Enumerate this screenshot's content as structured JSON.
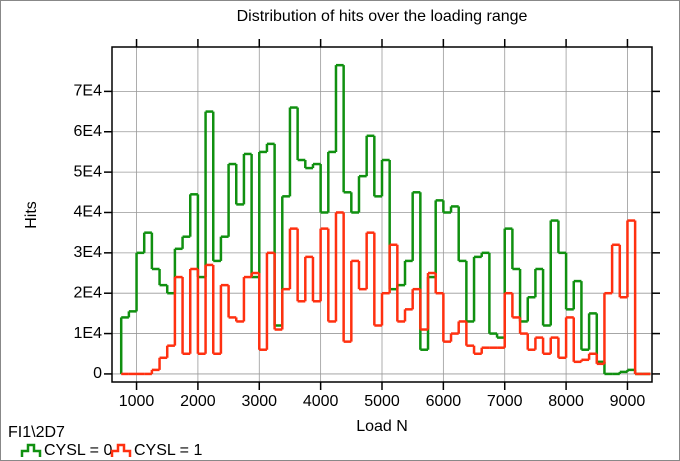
{
  "chart_data": {
    "type": "histogram",
    "title": "Distribution of hits over the loading range",
    "x_label": "Load N",
    "y_label": "Hits",
    "note": "FI1\\2D7",
    "bins": [
      750,
      875,
      1000,
      1125,
      1250,
      1375,
      1500,
      1625,
      1750,
      1875,
      2000,
      2125,
      2250,
      2375,
      2500,
      2625,
      2750,
      2875,
      3000,
      3125,
      3250,
      3375,
      3500,
      3625,
      3750,
      3875,
      4000,
      4125,
      4250,
      4375,
      4500,
      4625,
      4750,
      4875,
      5000,
      5125,
      5250,
      5375,
      5500,
      5625,
      5750,
      5875,
      6000,
      6125,
      6250,
      6375,
      6500,
      6625,
      6750,
      6875,
      7000,
      7125,
      7250,
      7375,
      7500,
      7625,
      7750,
      7875,
      8000,
      8125,
      8250,
      8375,
      8500,
      8625,
      8750,
      8875,
      9000,
      9125,
      9250,
      9375
    ],
    "series": [
      {
        "name": "CYSL = 0",
        "color": "#109010",
        "values": [
          14000,
          15500,
          30000,
          35000,
          26000,
          22000,
          20000,
          31000,
          34000,
          44500,
          24000,
          65000,
          28000,
          34000,
          52000,
          42000,
          54500,
          24000,
          55000,
          57000,
          12000,
          44000,
          66000,
          53000,
          51000,
          52000,
          40000,
          55000,
          76500,
          45000,
          40000,
          49000,
          59000,
          44000,
          53000,
          21000,
          22000,
          28000,
          45000,
          6000,
          24000,
          43000,
          40000,
          41500,
          28000,
          13000,
          29000,
          30000,
          10000,
          9000,
          36000,
          26000,
          13000,
          19000,
          26000,
          12000,
          38000,
          30000,
          16000,
          23000,
          6000,
          15000,
          3000,
          0,
          0,
          500,
          1000,
          0,
          0
        ]
      },
      {
        "name": "CYSL = 1",
        "color": "#ff3010",
        "values": [
          0,
          0,
          0,
          0,
          1000,
          4000,
          7000,
          24000,
          5000,
          26000,
          5000,
          27000,
          5000,
          22000,
          14000,
          13000,
          24000,
          25000,
          6000,
          30000,
          11000,
          21000,
          36000,
          18000,
          29000,
          18000,
          36000,
          13000,
          40000,
          8000,
          28000,
          21000,
          35000,
          12000,
          20000,
          32000,
          13000,
          16000,
          21000,
          11000,
          25000,
          20000,
          8000,
          10000,
          13000,
          7000,
          5000,
          6500,
          6500,
          6500,
          20000,
          14000,
          10000,
          6000,
          9000,
          5000,
          9000,
          4000,
          14000,
          3000,
          3500,
          5000,
          2500,
          20000,
          32000,
          19000,
          38000,
          0,
          0
        ]
      }
    ],
    "xlim": [
      600,
      9400
    ],
    "ylim": [
      -2000,
      81000
    ],
    "xticks": [
      1000,
      2000,
      3000,
      4000,
      5000,
      6000,
      7000,
      8000,
      9000
    ],
    "yticks": [
      0,
      {
        "value": 10000,
        "label": "1E4"
      },
      {
        "value": 20000,
        "label": "2E4"
      },
      {
        "value": 30000,
        "label": "3E4"
      },
      {
        "value": 40000,
        "label": "4E4"
      },
      {
        "value": 50000,
        "label": "5E4"
      },
      {
        "value": 60000,
        "label": "6E4"
      },
      {
        "value": 70000,
        "label": "7E4"
      }
    ],
    "grid": true
  }
}
